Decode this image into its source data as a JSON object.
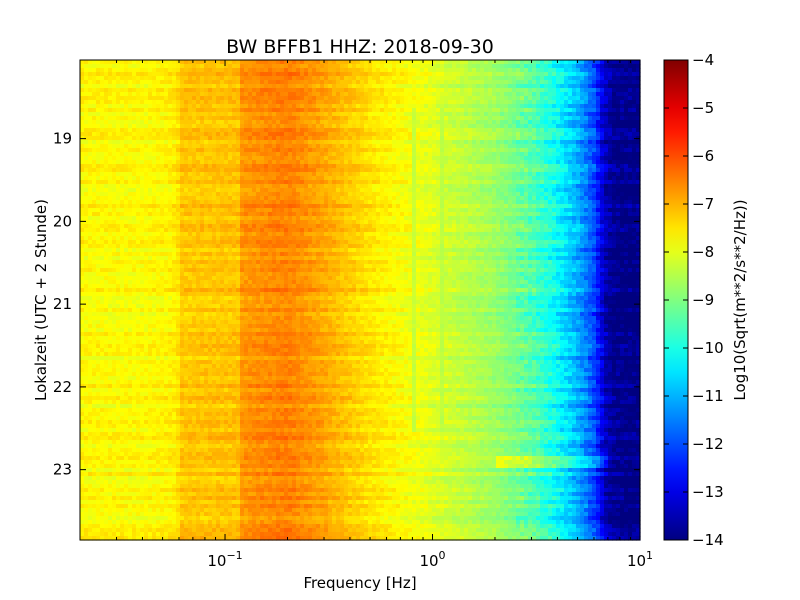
{
  "chart_data": {
    "type": "heatmap",
    "title": "BW BFFB1 HHZ: 2018-09-30",
    "xlabel": "Frequency [Hz]",
    "ylabel": "Lokalzeit (UTC + 2 Stunde)",
    "x_scale": "log",
    "xlim": [
      0.02,
      10
    ],
    "ylim": [
      18.05,
      23.85
    ],
    "y_inverted": true,
    "x_ticks": [
      {
        "value": 0.1,
        "base": "10",
        "exp": "−1"
      },
      {
        "value": 1,
        "base": "10",
        "exp": "0"
      },
      {
        "value": 10,
        "base": "10",
        "exp": "1"
      }
    ],
    "y_ticks": [
      {
        "value": 19,
        "label": "19"
      },
      {
        "value": 20,
        "label": "20"
      },
      {
        "value": 21,
        "label": "21"
      },
      {
        "value": 22,
        "label": "22"
      },
      {
        "value": 23,
        "label": "23"
      }
    ],
    "colorbar": {
      "label": "Log10(Sqrt(m**2/s**2/Hz))",
      "range": [
        -14,
        -4
      ],
      "colormap": "jet",
      "ticks": [
        {
          "value": -4,
          "label": "−4"
        },
        {
          "value": -5,
          "label": "−5"
        },
        {
          "value": -6,
          "label": "−6"
        },
        {
          "value": -7,
          "label": "−7"
        },
        {
          "value": -8,
          "label": "−8"
        },
        {
          "value": -9,
          "label": "−9"
        },
        {
          "value": -10,
          "label": "−10"
        },
        {
          "value": -11,
          "label": "−11"
        },
        {
          "value": -12,
          "label": "−12"
        },
        {
          "value": -13,
          "label": "−13"
        },
        {
          "value": -14,
          "label": "−14"
        }
      ]
    },
    "frequency_profile": [
      {
        "f": 0.02,
        "v": -7.7
      },
      {
        "f": 0.04,
        "v": -7.75
      },
      {
        "f": 0.059,
        "v": -7.6
      },
      {
        "f": 0.06,
        "v": -7.2
      },
      {
        "f": 0.118,
        "v": -7.15
      },
      {
        "f": 0.12,
        "v": -6.75
      },
      {
        "f": 0.2,
        "v": -6.5
      },
      {
        "f": 0.3,
        "v": -6.9
      },
      {
        "f": 0.5,
        "v": -7.5
      },
      {
        "f": 1.0,
        "v": -8.05
      },
      {
        "f": 2.0,
        "v": -8.7
      },
      {
        "f": 3.0,
        "v": -9.4
      },
      {
        "f": 4.0,
        "v": -10.2
      },
      {
        "f": 5.0,
        "v": -11.0
      },
      {
        "f": 6.0,
        "v": -12.0
      },
      {
        "f": 6.8,
        "v": -13.4
      },
      {
        "f": 7.5,
        "v": -13.9
      },
      {
        "f": 10.0,
        "v": -14.0
      }
    ],
    "row_count": 120,
    "col_count": 140,
    "notes_features": [
      {
        "type": "vertical-line",
        "f": 0.82,
        "v": -8.3,
        "y_from": 18.65,
        "y_to": 22.55
      },
      {
        "type": "vertical-line",
        "f": 1.1,
        "v": -8.4,
        "y_from": 18.65,
        "y_to": 22.55
      },
      {
        "type": "horizontal-band",
        "y": 22.9,
        "f_from": 2.0,
        "f_to": 7.0,
        "v_offset": 0.8
      }
    ]
  }
}
